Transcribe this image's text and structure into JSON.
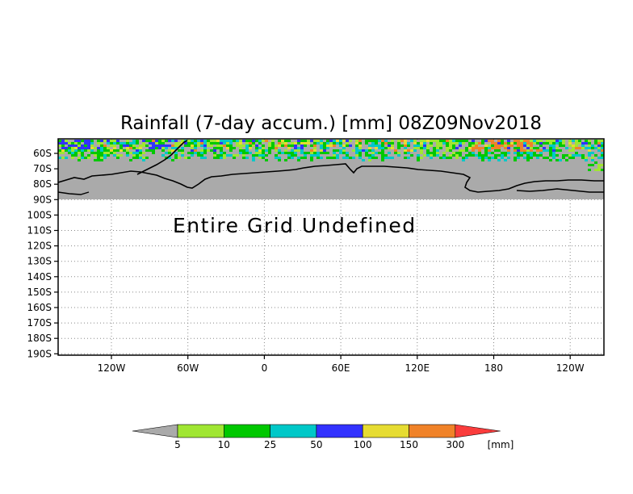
{
  "map": {
    "title": "Rainfall (7-day accum.) [mm] 08Z09Nov2018",
    "message": "Entire Grid Undefined",
    "lat_labels": [
      "60S",
      "70S",
      "80S",
      "90S",
      "100S",
      "110S",
      "120S",
      "130S",
      "140S",
      "150S",
      "160S",
      "170S",
      "180S",
      "190S"
    ],
    "lon_labels": [
      "120W",
      "60W",
      "0",
      "60E",
      "120E",
      "180",
      "120W"
    ],
    "land_color": "#aaaaaa",
    "frame_color": "#000000"
  },
  "colorbar": {
    "labels": [
      "5",
      "10",
      "25",
      "50",
      "100",
      "150",
      "300"
    ],
    "unit": "[mm]",
    "colors": [
      "#aaaaaa",
      "#a0e632",
      "#00c800",
      "#00c8c8",
      "#3232ff",
      "#e6dc32",
      "#f08228",
      "#fa3c3c"
    ]
  }
}
